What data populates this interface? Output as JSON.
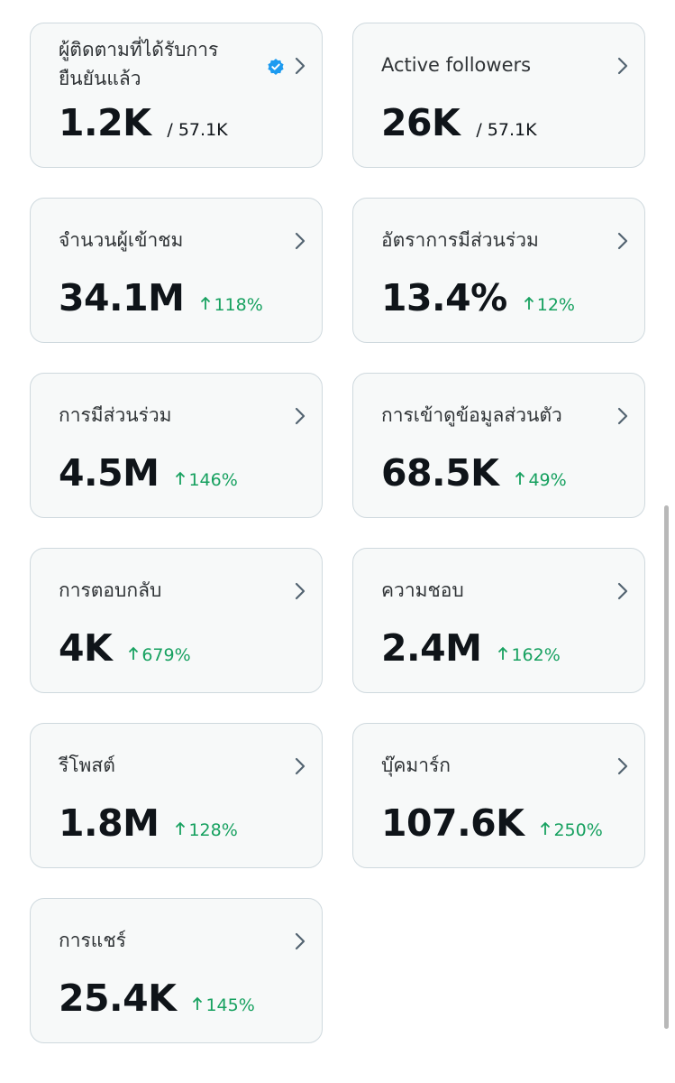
{
  "cards": [
    {
      "title": "ผู้ติดตามที่ได้รับการยืนยันแล้ว",
      "value": "1.2K",
      "total": "/ 57.1K"
    },
    {
      "title": "Active followers",
      "value": "26K",
      "total": "/ 57.1K"
    },
    {
      "title": "จำนวนผู้เข้าชม",
      "value": "34.1M",
      "change": "118%"
    },
    {
      "title": "อัตราการมีส่วนร่วม",
      "value": "13.4%",
      "change": "12%"
    },
    {
      "title": "การมีส่วนร่วม",
      "value": "4.5M",
      "change": "146%"
    },
    {
      "title": "การเข้าดูข้อมูลส่วนตัว",
      "value": "68.5K",
      "change": "49%"
    },
    {
      "title": "การตอบกลับ",
      "value": "4K",
      "change": "679%"
    },
    {
      "title": "ความชอบ",
      "value": "2.4M",
      "change": "162%"
    },
    {
      "title": "รีโพสต์",
      "value": "1.8M",
      "change": "128%"
    },
    {
      "title": "บุ๊คมาร์ก",
      "value": "107.6K",
      "change": "250%"
    },
    {
      "title": "การแชร์",
      "value": "25.4K",
      "change": "145%"
    }
  ]
}
